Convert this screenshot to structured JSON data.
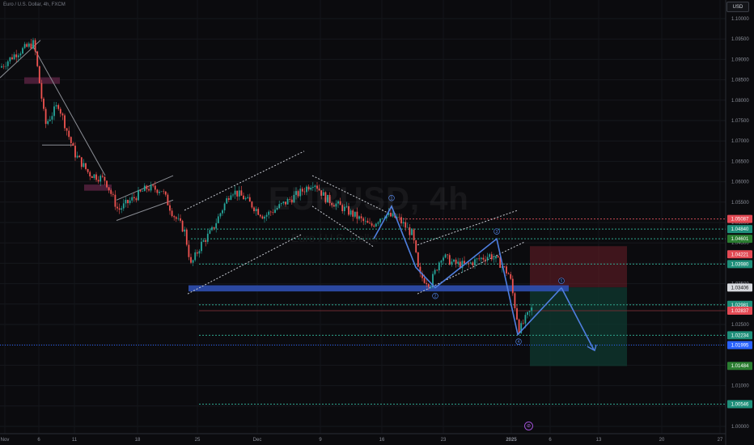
{
  "header": {
    "symbol_title": "Euro / U.S. Dollar, 4h, FXCM",
    "currency_button": "USD"
  },
  "watermark": {
    "main": "EURUSD, 4h",
    "sub": "Euro / U.S. Dollar"
  },
  "price_axis": {
    "ticks": [
      "1.10000",
      "1.09500",
      "1.09000",
      "1.08500",
      "1.08000",
      "1.07500",
      "1.07000",
      "1.06500",
      "1.06000",
      "1.05500",
      "1.05000",
      "1.04500",
      "1.04000",
      "1.03500",
      "1.03000",
      "1.02500",
      "1.02000",
      "1.01500",
      "1.01000",
      "1.00500",
      "1.00000"
    ],
    "tags": [
      {
        "label": "1.05087",
        "bg": "#e34a54",
        "fg": "#ffffff"
      },
      {
        "label": "1.04840",
        "bg": "#1f8f7a",
        "fg": "#ffffff"
      },
      {
        "label": "1.04601",
        "bg": "#2b7d31",
        "fg": "#ffffff"
      },
      {
        "label": "1.04221",
        "bg": "#e34a54",
        "fg": "#ffffff"
      },
      {
        "label": "1.03980",
        "bg": "#1f8f7a",
        "fg": "#ffffff"
      },
      {
        "label": "1.03406",
        "bg": "#d7d9de",
        "fg": "#111111"
      },
      {
        "label": "1.02981",
        "bg": "#1f8f7a",
        "fg": "#ffffff"
      },
      {
        "label": "1.02837",
        "bg": "#e34a54",
        "fg": "#ffffff"
      },
      {
        "label": "1.02234",
        "bg": "#1f8f7a",
        "fg": "#ffffff"
      },
      {
        "label": "1.01995",
        "bg": "#2962ff",
        "fg": "#ffffff"
      },
      {
        "label": "1.01484",
        "bg": "#2b7d31",
        "fg": "#ffffff"
      },
      {
        "label": "1.00546",
        "bg": "#1f8f7a",
        "fg": "#ffffff"
      }
    ]
  },
  "time_axis": {
    "ticks": [
      "Nov",
      "6",
      "11",
      "18",
      "25",
      "Dec",
      "9",
      "16",
      "23",
      "2025",
      "6",
      "13",
      "20",
      "27"
    ]
  },
  "wave_labels": [
    "①",
    "②",
    "③",
    "④",
    "⑤"
  ],
  "logo_badge": "⊘",
  "colors": {
    "up_candle": "#26a69a",
    "down_candle": "#ef5350",
    "wave_line": "#4f7fe0",
    "support_zone": "#2f4fb0",
    "stop_zone": "#6b1f28",
    "target_zone": "#0f3a30"
  }
}
